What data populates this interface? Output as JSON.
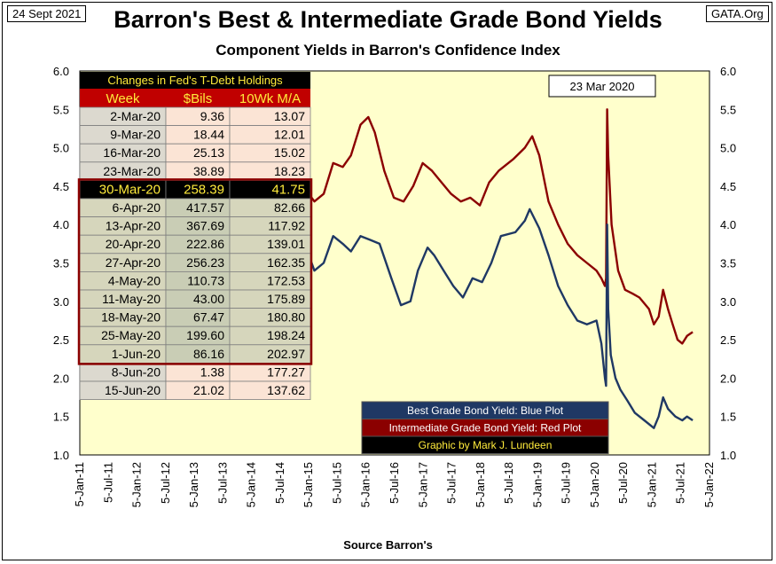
{
  "header": {
    "date_label": "24 Sept 2021",
    "site_label": "GATA.Org",
    "title": "Barron's Best & Intermediate Grade Bond Yields",
    "subtitle": "Component Yields in Barron's Confidence Index",
    "source": "Source Barron's"
  },
  "annotation": "23 Mar 2020",
  "table": {
    "title": "Changes in Fed's T-Debt Holdings",
    "headers": [
      "Week",
      "$Bils",
      "10Wk M/A"
    ],
    "highlight_row": 4,
    "rows": [
      [
        "2-Mar-20",
        "9.36",
        "13.07"
      ],
      [
        "9-Mar-20",
        "18.44",
        "12.01"
      ],
      [
        "16-Mar-20",
        "25.13",
        "15.02"
      ],
      [
        "23-Mar-20",
        "38.89",
        "18.23"
      ],
      [
        "30-Mar-20",
        "258.39",
        "41.75"
      ],
      [
        "6-Apr-20",
        "417.57",
        "82.66"
      ],
      [
        "13-Apr-20",
        "367.69",
        "117.92"
      ],
      [
        "20-Apr-20",
        "222.86",
        "139.01"
      ],
      [
        "27-Apr-20",
        "256.23",
        "162.35"
      ],
      [
        "4-May-20",
        "110.73",
        "172.53"
      ],
      [
        "11-May-20",
        "43.00",
        "175.89"
      ],
      [
        "18-May-20",
        "67.47",
        "180.80"
      ],
      [
        "25-May-20",
        "199.60",
        "198.24"
      ],
      [
        "1-Jun-20",
        "86.16",
        "202.97"
      ],
      [
        "8-Jun-20",
        "1.38",
        "177.27"
      ],
      [
        "15-Jun-20",
        "21.02",
        "137.62"
      ]
    ]
  },
  "legend": [
    "Best Grade Bond Yield: Blue Plot",
    "Intermediate Grade Bond Yield: Red Plot",
    "Graphic by Mark J. Lundeen"
  ],
  "colors": {
    "plot_bg": "#ffffcc",
    "best": "#1f3864",
    "intermediate": "#8b0000",
    "table_dark": "#000000",
    "table_header_fill": "#c00000",
    "highlight_text": "#ffeb3b"
  },
  "chart_data": {
    "type": "line",
    "x_tick_labels": [
      "5-Jan-11",
      "5-Jul-11",
      "5-Jan-12",
      "5-Jul-12",
      "5-Jan-13",
      "5-Jul-13",
      "5-Jan-14",
      "5-Jul-14",
      "5-Jan-15",
      "5-Jul-15",
      "5-Jan-16",
      "5-Jul-16",
      "5-Jan-17",
      "5-Jul-17",
      "5-Jan-18",
      "5-Jul-18",
      "5-Jan-19",
      "5-Jul-19",
      "5-Jan-20",
      "5-Jul-20",
      "5-Jan-21",
      "5-Jul-21",
      "5-Jan-22"
    ],
    "xlim": [
      "2011-01-05",
      "2022-01-05"
    ],
    "ylim": [
      1.0,
      6.0
    ],
    "y_ticks": [
      "1.0",
      "1.5",
      "2.0",
      "2.5",
      "3.0",
      "3.5",
      "4.0",
      "4.5",
      "5.0",
      "5.5",
      "6.0"
    ],
    "grid": "none",
    "legend_position": "bottom-right",
    "series": [
      {
        "name": "Best Grade Bond Yield",
        "points": [
          [
            "2015-01-05",
            3.6
          ],
          [
            "2015-02-10",
            3.4
          ],
          [
            "2015-04-10",
            3.5
          ],
          [
            "2015-06-10",
            3.85
          ],
          [
            "2015-08-10",
            3.75
          ],
          [
            "2015-10-01",
            3.65
          ],
          [
            "2015-12-01",
            3.85
          ],
          [
            "2016-02-01",
            3.8
          ],
          [
            "2016-04-01",
            3.75
          ],
          [
            "2016-06-15",
            3.3
          ],
          [
            "2016-08-15",
            2.95
          ],
          [
            "2016-10-15",
            3.0
          ],
          [
            "2016-12-01",
            3.4
          ],
          [
            "2017-02-01",
            3.7
          ],
          [
            "2017-03-15",
            3.6
          ],
          [
            "2017-05-15",
            3.4
          ],
          [
            "2017-07-15",
            3.2
          ],
          [
            "2017-09-15",
            3.05
          ],
          [
            "2017-11-15",
            3.3
          ],
          [
            "2018-01-15",
            3.25
          ],
          [
            "2018-03-15",
            3.5
          ],
          [
            "2018-05-15",
            3.85
          ],
          [
            "2018-08-15",
            3.9
          ],
          [
            "2018-10-15",
            4.05
          ],
          [
            "2018-11-15",
            4.2
          ],
          [
            "2019-01-15",
            3.95
          ],
          [
            "2019-03-15",
            3.6
          ],
          [
            "2019-05-15",
            3.2
          ],
          [
            "2019-07-15",
            2.95
          ],
          [
            "2019-09-15",
            2.75
          ],
          [
            "2019-11-15",
            2.7
          ],
          [
            "2020-01-15",
            2.75
          ],
          [
            "2020-02-15",
            2.45
          ],
          [
            "2020-03-09",
            2.0
          ],
          [
            "2020-03-16",
            1.9
          ],
          [
            "2020-03-23",
            4.0
          ],
          [
            "2020-03-30",
            2.9
          ],
          [
            "2020-04-15",
            2.3
          ],
          [
            "2020-05-15",
            2.0
          ],
          [
            "2020-06-15",
            1.85
          ],
          [
            "2020-08-01",
            1.7
          ],
          [
            "2020-09-15",
            1.55
          ],
          [
            "2020-11-15",
            1.45
          ],
          [
            "2021-01-15",
            1.35
          ],
          [
            "2021-02-15",
            1.5
          ],
          [
            "2021-03-15",
            1.75
          ],
          [
            "2021-04-15",
            1.6
          ],
          [
            "2021-06-01",
            1.5
          ],
          [
            "2021-07-15",
            1.45
          ],
          [
            "2021-08-15",
            1.5
          ],
          [
            "2021-09-20",
            1.45
          ]
        ]
      },
      {
        "name": "Intermediate Grade Bond Yield",
        "points": [
          [
            "2015-01-05",
            4.4
          ],
          [
            "2015-02-10",
            4.3
          ],
          [
            "2015-04-10",
            4.4
          ],
          [
            "2015-06-10",
            4.8
          ],
          [
            "2015-08-10",
            4.75
          ],
          [
            "2015-10-01",
            4.9
          ],
          [
            "2015-12-01",
            5.3
          ],
          [
            "2016-01-20",
            5.4
          ],
          [
            "2016-03-01",
            5.2
          ],
          [
            "2016-05-01",
            4.7
          ],
          [
            "2016-07-01",
            4.35
          ],
          [
            "2016-09-01",
            4.3
          ],
          [
            "2016-11-01",
            4.5
          ],
          [
            "2017-01-01",
            4.8
          ],
          [
            "2017-03-01",
            4.7
          ],
          [
            "2017-05-01",
            4.55
          ],
          [
            "2017-07-01",
            4.4
          ],
          [
            "2017-09-01",
            4.3
          ],
          [
            "2017-11-01",
            4.35
          ],
          [
            "2018-01-01",
            4.25
          ],
          [
            "2018-03-01",
            4.55
          ],
          [
            "2018-05-01",
            4.7
          ],
          [
            "2018-08-01",
            4.85
          ],
          [
            "2018-10-15",
            5.0
          ],
          [
            "2018-12-01",
            5.15
          ],
          [
            "2019-01-15",
            4.9
          ],
          [
            "2019-03-15",
            4.3
          ],
          [
            "2019-05-15",
            4.0
          ],
          [
            "2019-07-15",
            3.75
          ],
          [
            "2019-09-15",
            3.6
          ],
          [
            "2019-11-15",
            3.5
          ],
          [
            "2020-01-15",
            3.4
          ],
          [
            "2020-02-15",
            3.3
          ],
          [
            "2020-03-09",
            3.2
          ],
          [
            "2020-03-16",
            3.3
          ],
          [
            "2020-03-23",
            5.5
          ],
          [
            "2020-03-30",
            4.9
          ],
          [
            "2020-04-20",
            4.0
          ],
          [
            "2020-06-01",
            3.4
          ],
          [
            "2020-07-15",
            3.15
          ],
          [
            "2020-09-01",
            3.1
          ],
          [
            "2020-10-15",
            3.05
          ],
          [
            "2020-12-15",
            2.9
          ],
          [
            "2021-01-15",
            2.7
          ],
          [
            "2021-02-15",
            2.8
          ],
          [
            "2021-03-15",
            3.15
          ],
          [
            "2021-04-15",
            2.9
          ],
          [
            "2021-05-15",
            2.7
          ],
          [
            "2021-06-15",
            2.5
          ],
          [
            "2021-07-15",
            2.45
          ],
          [
            "2021-08-15",
            2.55
          ],
          [
            "2021-09-20",
            2.6
          ]
        ]
      }
    ]
  }
}
